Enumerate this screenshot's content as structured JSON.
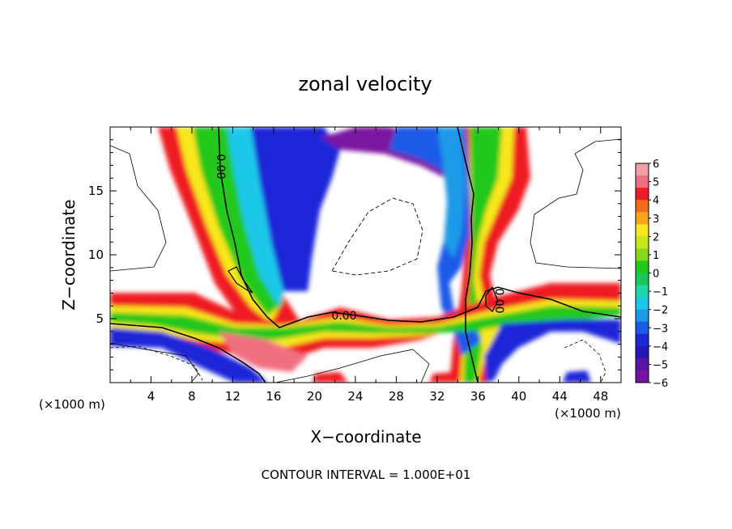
{
  "chart_data": {
    "type": "heatmap",
    "title": "zonal velocity",
    "xlabel": "X−coordinate",
    "ylabel": "Z−coordinate",
    "x_unit": "(×1000 m)",
    "y_unit": "(×1000 m)",
    "xlim": [
      0,
      50
    ],
    "ylim": [
      0,
      20
    ],
    "x_ticks": [
      4,
      8,
      12,
      16,
      20,
      24,
      28,
      32,
      36,
      40,
      44,
      48
    ],
    "y_ticks": [
      5,
      10,
      15
    ],
    "footer": "CONTOUR INTERVAL = 1.000E+01",
    "contour_labels": [
      "0.00",
      "0.00",
      "0.00"
    ],
    "colorbar": {
      "ticks": [
        "6",
        "5",
        "4",
        "3",
        "2",
        "1",
        "0",
        "−1",
        "−2",
        "−3",
        "−4",
        "−5",
        "−6"
      ],
      "range": [
        -6,
        6
      ],
      "colors": [
        "#f5a0a8",
        "#f07080",
        "#ee1c24",
        "#f26a1a",
        "#faa51a",
        "#f8e71c",
        "#c6e81a",
        "#86d81a",
        "#22c81a",
        "#1ac85a",
        "#1ad8a8",
        "#1ac8e8",
        "#1a9ae8",
        "#1a5ae8",
        "#1a28d8",
        "#2418b8",
        "#5a14a8",
        "#7a12a0"
      ]
    }
  }
}
